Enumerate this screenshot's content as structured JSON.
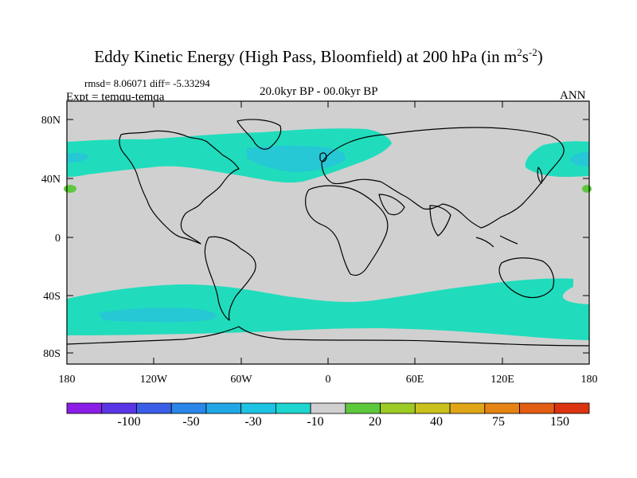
{
  "title": {
    "main": "Eddy Kinetic Energy (High Pass, Bloomfield) at 200 hPa (in m",
    "sup1": "2",
    "mid": "s",
    "sup2": "-2",
    "end": ")"
  },
  "stats": {
    "rmsd": "rmsd= 8.06071 diff= -5.33294"
  },
  "experiment": "Expt = temqu-temqa",
  "period": "20.0kyr BP - 00.0kyr BP",
  "season": "ANN",
  "map": {
    "lat_ticks": [
      "80N",
      "40N",
      "0",
      "40S",
      "80S"
    ],
    "lon_ticks": [
      "180",
      "120W",
      "60W",
      "0",
      "60E",
      "120E",
      "180"
    ]
  },
  "colorbar": {
    "colors": [
      "#8a1ee6",
      "#5a35e6",
      "#3a5ee8",
      "#2a86e8",
      "#20a7e6",
      "#1dc3e2",
      "#1ed6cf",
      "#d0d0d0",
      "#5ec83c",
      "#9ccb23",
      "#c9c11d",
      "#e1a617",
      "#e58313",
      "#e35d12",
      "#dc3410"
    ],
    "labels": [
      "-100",
      "-50",
      "-30",
      "-10",
      "20",
      "40",
      "75",
      "150"
    ]
  },
  "fills": {
    "land_bg": "#d0d0d0",
    "band": "#20dcbc",
    "band_core": "#25c8d4",
    "positive": "#5ec83c"
  }
}
